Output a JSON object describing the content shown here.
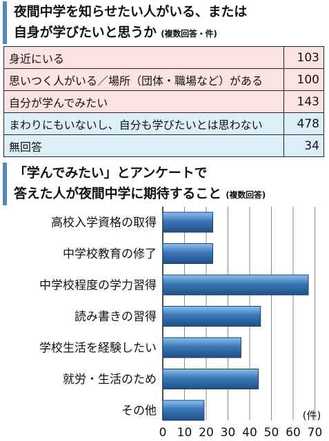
{
  "section1": {
    "title_line1": "夜間中学を知らせたい人がいる、または",
    "title_line2": "自身が学びたいと思うか",
    "note": "(複数回答・件)"
  },
  "survey_table": [
    {
      "label": "身近にいる",
      "value": "103",
      "shade": "pink"
    },
    {
      "label": "思いつく人がいる／場所（団体・職場など）がある",
      "value": "100",
      "shade": "pink"
    },
    {
      "label": "自分が学んでみたい",
      "value": "143",
      "shade": "pink"
    },
    {
      "label": "まわりにもいないし、自分も学びたいとは思わない",
      "value": "478",
      "shade": "blue"
    },
    {
      "label": "無回答",
      "value": "34",
      "shade": "blue"
    }
  ],
  "section2": {
    "title_line1": "「学んでみたい」とアンケートで",
    "title_line2": "答えた人が夜間中学に期待すること",
    "note": "(複数回答)"
  },
  "chart_data": {
    "type": "bar",
    "orientation": "horizontal",
    "categories": [
      "高校入学資格の取得",
      "中学校教育の修了",
      "中学校程度の学力習得",
      "読み書きの習得",
      "学校生活を経験したい",
      "就労・生活のため",
      "その他"
    ],
    "values": [
      23,
      23,
      67,
      45,
      36,
      44,
      19
    ],
    "xlim": [
      0,
      70
    ],
    "xticks": [
      "0",
      "10",
      "20",
      "30",
      "40",
      "50",
      "60",
      "70"
    ],
    "unit": "(件)",
    "grid": true,
    "bar_color": "#3b78b8"
  }
}
